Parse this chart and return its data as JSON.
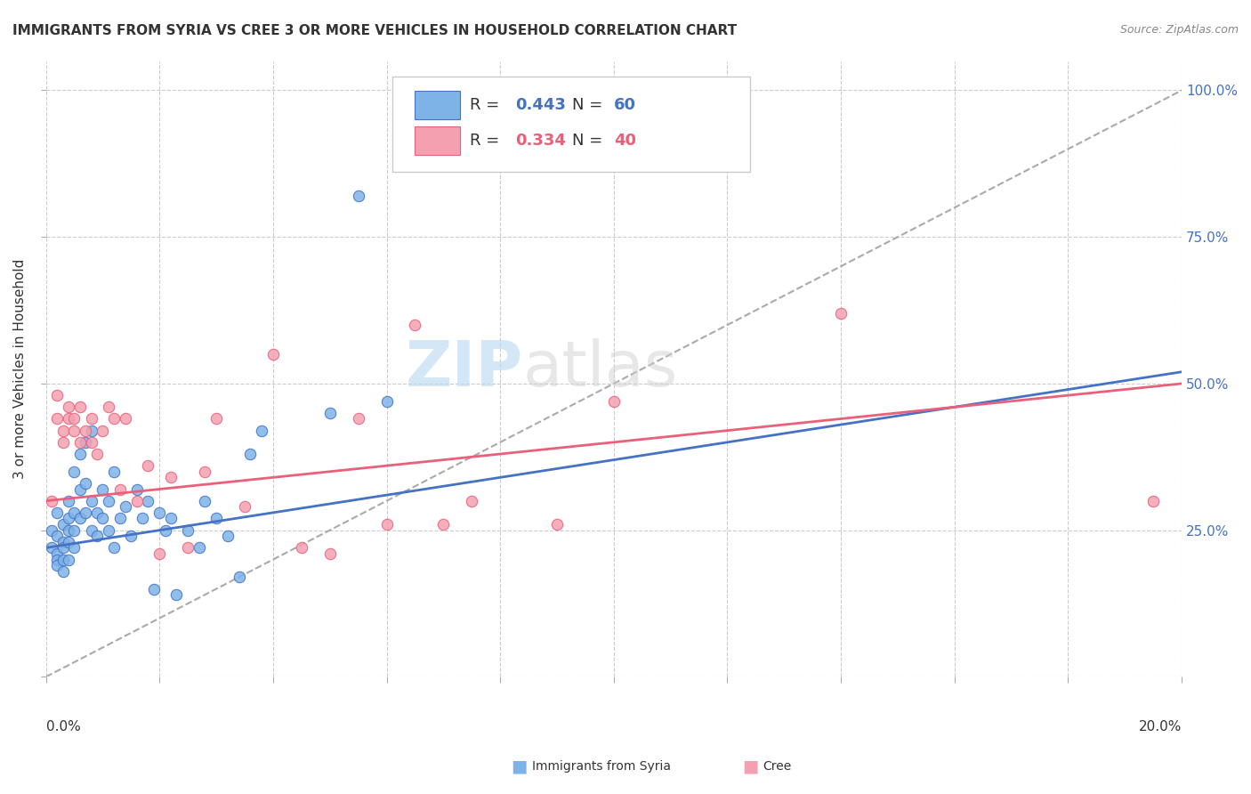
{
  "title": "IMMIGRANTS FROM SYRIA VS CREE 3 OR MORE VEHICLES IN HOUSEHOLD CORRELATION CHART",
  "source": "Source: ZipAtlas.com",
  "ylabel": "3 or more Vehicles in Household",
  "xlim": [
    0.0,
    0.2
  ],
  "ylim": [
    0.0,
    1.05
  ],
  "legend1_R": "0.443",
  "legend1_N": "60",
  "legend2_R": "0.334",
  "legend2_N": "40",
  "color_syria": "#7EB3E8",
  "color_cree": "#F4A0B0",
  "color_syria_line": "#4472C4",
  "color_cree_line": "#E8607A",
  "color_dashed": "#AAAAAA",
  "watermark_zip": "ZIP",
  "watermark_atlas": "atlas",
  "syria_points_x": [
    0.001,
    0.001,
    0.002,
    0.002,
    0.002,
    0.002,
    0.002,
    0.003,
    0.003,
    0.003,
    0.003,
    0.003,
    0.004,
    0.004,
    0.004,
    0.004,
    0.004,
    0.005,
    0.005,
    0.005,
    0.005,
    0.006,
    0.006,
    0.006,
    0.007,
    0.007,
    0.007,
    0.008,
    0.008,
    0.008,
    0.009,
    0.009,
    0.01,
    0.01,
    0.011,
    0.011,
    0.012,
    0.012,
    0.013,
    0.014,
    0.015,
    0.016,
    0.017,
    0.018,
    0.019,
    0.02,
    0.021,
    0.022,
    0.023,
    0.025,
    0.027,
    0.028,
    0.03,
    0.032,
    0.034,
    0.036,
    0.038,
    0.05,
    0.055,
    0.06
  ],
  "syria_points_y": [
    0.25,
    0.22,
    0.28,
    0.24,
    0.21,
    0.2,
    0.19,
    0.26,
    0.23,
    0.22,
    0.2,
    0.18,
    0.3,
    0.27,
    0.25,
    0.23,
    0.2,
    0.35,
    0.28,
    0.25,
    0.22,
    0.38,
    0.32,
    0.27,
    0.4,
    0.33,
    0.28,
    0.42,
    0.3,
    0.25,
    0.28,
    0.24,
    0.32,
    0.27,
    0.3,
    0.25,
    0.35,
    0.22,
    0.27,
    0.29,
    0.24,
    0.32,
    0.27,
    0.3,
    0.15,
    0.28,
    0.25,
    0.27,
    0.14,
    0.25,
    0.22,
    0.3,
    0.27,
    0.24,
    0.17,
    0.38,
    0.42,
    0.45,
    0.82,
    0.47
  ],
  "cree_points_x": [
    0.001,
    0.002,
    0.002,
    0.003,
    0.003,
    0.004,
    0.004,
    0.005,
    0.005,
    0.006,
    0.006,
    0.007,
    0.008,
    0.008,
    0.009,
    0.01,
    0.011,
    0.012,
    0.013,
    0.014,
    0.016,
    0.018,
    0.02,
    0.022,
    0.025,
    0.028,
    0.03,
    0.035,
    0.04,
    0.045,
    0.05,
    0.055,
    0.06,
    0.065,
    0.07,
    0.075,
    0.09,
    0.1,
    0.14,
    0.195
  ],
  "cree_points_y": [
    0.3,
    0.48,
    0.44,
    0.42,
    0.4,
    0.46,
    0.44,
    0.44,
    0.42,
    0.46,
    0.4,
    0.42,
    0.44,
    0.4,
    0.38,
    0.42,
    0.46,
    0.44,
    0.32,
    0.44,
    0.3,
    0.36,
    0.21,
    0.34,
    0.22,
    0.35,
    0.44,
    0.29,
    0.55,
    0.22,
    0.21,
    0.44,
    0.26,
    0.6,
    0.26,
    0.3,
    0.26,
    0.47,
    0.62,
    0.3
  ],
  "syria_line_x": [
    0.0,
    0.2
  ],
  "syria_line_y": [
    0.22,
    0.52
  ],
  "cree_line_x": [
    0.0,
    0.2
  ],
  "cree_line_y": [
    0.3,
    0.5
  ],
  "dashed_line_x": [
    0.0,
    0.2
  ],
  "dashed_line_y": [
    0.0,
    1.0
  ],
  "ytick_vals": [
    0.0,
    0.25,
    0.5,
    0.75,
    1.0
  ],
  "ytick_labels_right": [
    "",
    "25.0%",
    "50.0%",
    "75.0%",
    "100.0%"
  ],
  "xtick_vals": [
    0.0,
    0.02,
    0.04,
    0.06,
    0.08,
    0.1,
    0.12,
    0.14,
    0.16,
    0.18,
    0.2
  ]
}
